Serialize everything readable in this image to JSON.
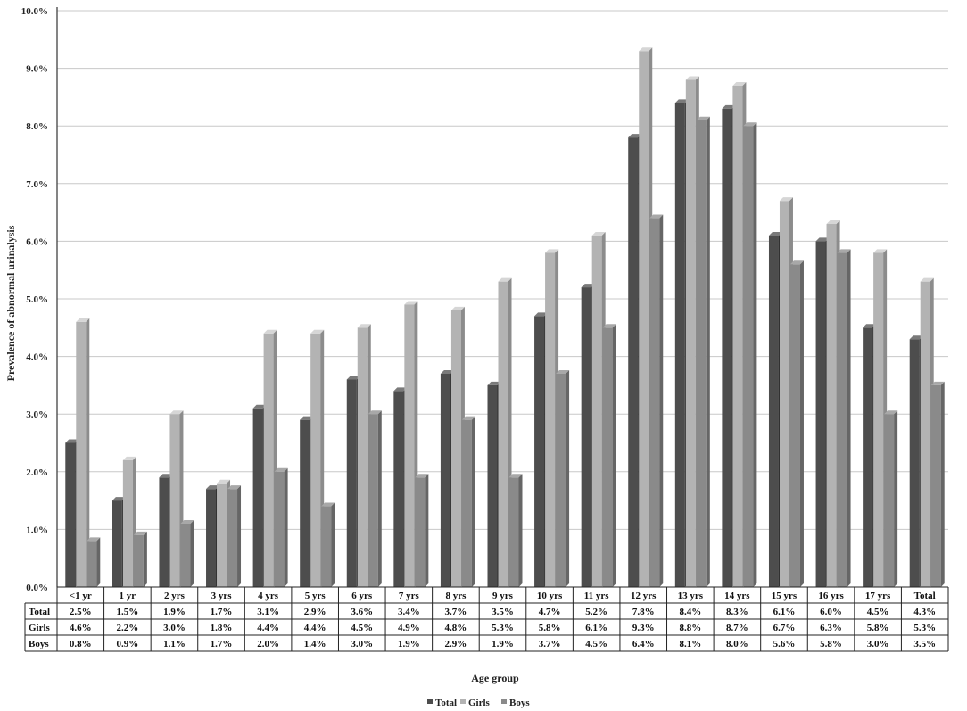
{
  "chart_data": {
    "type": "bar",
    "ylabel": "Prevalence of abnormal urinalysis",
    "xlabel": "Age group",
    "ylim": [
      0,
      10
    ],
    "yticks": [
      "0.0%",
      "1.0%",
      "2.0%",
      "3.0%",
      "4.0%",
      "5.0%",
      "6.0%",
      "7.0%",
      "8.0%",
      "9.0%",
      "10.0%"
    ],
    "grid": true,
    "legend_position": "bottom",
    "categories": [
      "<1 yr",
      "1 yr",
      "2 yrs",
      "3 yrs",
      "4 yrs",
      "5 yrs",
      "6 yrs",
      "7 yrs",
      "8 yrs",
      "9 yrs",
      "10 yrs",
      "11 yrs",
      "12 yrs",
      "13 yrs",
      "14 yrs",
      "15 yrs",
      "16 yrs",
      "17 yrs",
      "Total"
    ],
    "series": [
      {
        "name": "Total",
        "color": "#4d4d4d",
        "side": "#2e2e2e",
        "top": "#7a7a7a",
        "values": [
          2.5,
          1.5,
          1.9,
          1.7,
          3.1,
          2.9,
          3.6,
          3.4,
          3.7,
          3.5,
          4.7,
          5.2,
          7.8,
          8.4,
          8.3,
          6.1,
          6.0,
          4.5,
          4.3
        ],
        "labels": [
          "2.5%",
          "1.5%",
          "1.9%",
          "1.7%",
          "3.1%",
          "2.9%",
          "3.6%",
          "3.4%",
          "3.7%",
          "3.5%",
          "4.7%",
          "5.2%",
          "7.8%",
          "8.4%",
          "8.3%",
          "6.1%",
          "6.0%",
          "4.5%",
          "4.3%"
        ]
      },
      {
        "name": "Girls",
        "color": "#b3b3b3",
        "side": "#8c8c8c",
        "top": "#d6d6d6",
        "values": [
          4.6,
          2.2,
          3.0,
          1.8,
          4.4,
          4.4,
          4.5,
          4.9,
          4.8,
          5.3,
          5.8,
          6.1,
          9.3,
          8.8,
          8.7,
          6.7,
          6.3,
          5.8,
          5.3
        ],
        "labels": [
          "4.6%",
          "2.2%",
          "3.0%",
          "1.8%",
          "4.4%",
          "4.4%",
          "4.5%",
          "4.9%",
          "4.8%",
          "5.3%",
          "5.8%",
          "6.1%",
          "9.3%",
          "8.8%",
          "8.7%",
          "6.7%",
          "6.3%",
          "5.8%",
          "5.3%"
        ]
      },
      {
        "name": "Boys",
        "color": "#8a8a8a",
        "side": "#666666",
        "top": "#a8a8a8",
        "values": [
          0.8,
          0.9,
          1.1,
          1.7,
          2.0,
          1.4,
          3.0,
          1.9,
          2.9,
          1.9,
          3.7,
          4.5,
          6.4,
          8.1,
          8.0,
          5.6,
          5.8,
          3.0,
          3.5
        ],
        "labels": [
          "0.8%",
          "0.9%",
          "1.1%",
          "1.7%",
          "2.0%",
          "1.4%",
          "3.0%",
          "1.9%",
          "2.9%",
          "1.9%",
          "3.7%",
          "4.5%",
          "6.4%",
          "8.1%",
          "8.0%",
          "5.6%",
          "5.8%",
          "3.0%",
          "3.5%"
        ]
      }
    ]
  }
}
